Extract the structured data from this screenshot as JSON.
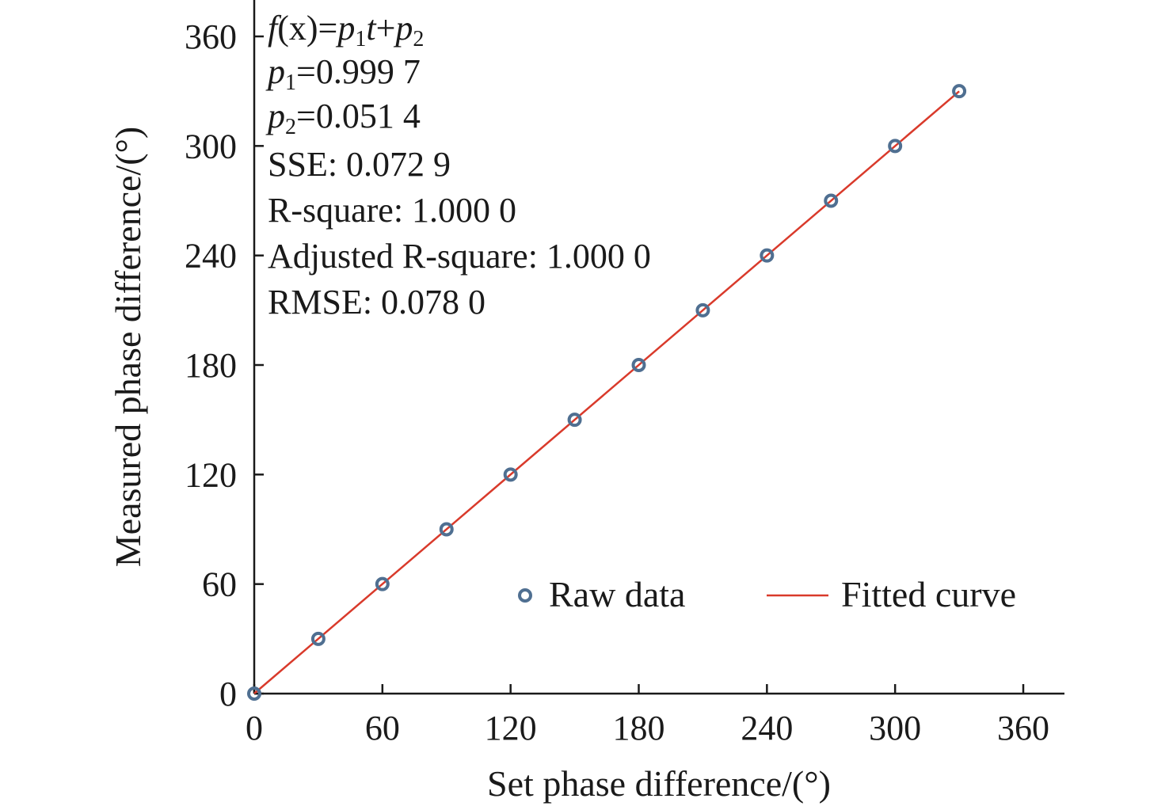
{
  "chart_data": {
    "type": "scatter",
    "xlabel": "Set phase difference/(°)",
    "ylabel": "Measured phase difference/(°)",
    "xlim": [
      0,
      380
    ],
    "ylim": [
      0,
      380
    ],
    "x_ticks": [
      "0",
      "60",
      "120",
      "180",
      "240",
      "300",
      "360"
    ],
    "y_ticks": [
      "0",
      "60",
      "120",
      "180",
      "240",
      "300",
      "360"
    ],
    "grid": false,
    "legend_position": "bottom-right",
    "series": [
      {
        "name": "Raw data",
        "kind": "scatter",
        "color": "#4f6f91",
        "x": [
          0,
          30,
          60,
          90,
          120,
          150,
          180,
          210,
          240,
          270,
          300,
          330
        ],
        "y": [
          0,
          30,
          60,
          90,
          120,
          150,
          180,
          210,
          240,
          270,
          300,
          330
        ]
      },
      {
        "name": "Fitted curve",
        "kind": "line",
        "color": "#d93a2b",
        "x": [
          0,
          330
        ],
        "y": [
          0.0514,
          329.9524
        ]
      }
    ],
    "annotation": {
      "formula": {
        "f": "f",
        "x_expr": "(x)=",
        "p1": "p",
        "p1_sub": "1",
        "t": "t",
        "plus": "+",
        "p2": "p",
        "p2_sub": "2"
      },
      "p1_line": {
        "p": "p",
        "sub": "1",
        "value": "=0.999 7"
      },
      "p2_line": {
        "p": "p",
        "sub": "2",
        "value": "=0.051 4"
      },
      "sse": "SSE: 0.072 9",
      "rsquare": "R-square: 1.000 0",
      "adj_rsquare": "Adjusted R-square: 1.000 0",
      "rmse": "RMSE: 0.078 0"
    }
  }
}
